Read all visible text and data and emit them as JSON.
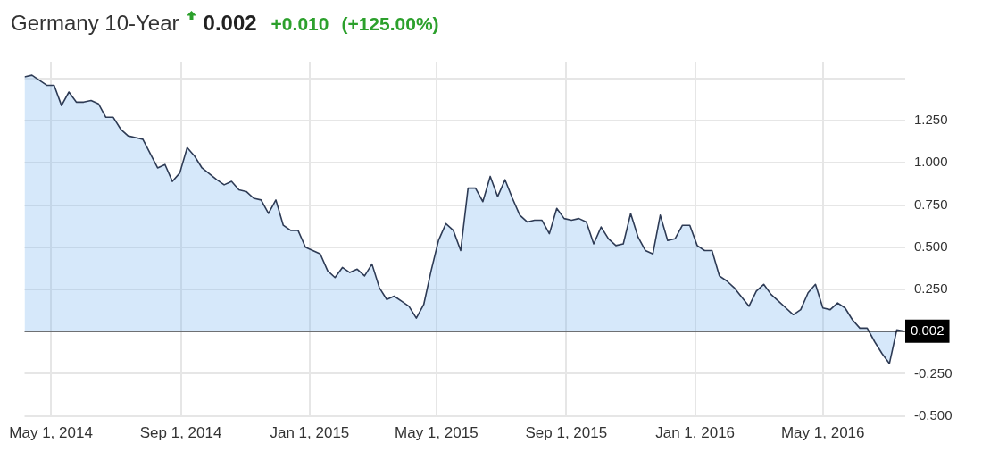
{
  "chart_data": {
    "type": "area",
    "title": "Germany 10-Year",
    "annotations": [
      "0.002",
      "+0.010",
      "(+125.00%)"
    ],
    "x": [
      "2014-04-06",
      "2014-04-13",
      "2014-04-27",
      "2014-05-04",
      "2014-05-11",
      "2014-05-18",
      "2014-05-25",
      "2014-06-01",
      "2014-06-08",
      "2014-06-15",
      "2014-06-22",
      "2014-06-29",
      "2014-07-06",
      "2014-07-13",
      "2014-07-20",
      "2014-07-27",
      "2014-08-10",
      "2014-08-17",
      "2014-08-24",
      "2014-08-31",
      "2014-09-07",
      "2014-09-14",
      "2014-09-21",
      "2014-10-05",
      "2014-10-12",
      "2014-10-19",
      "2014-10-26",
      "2014-11-02",
      "2014-11-09",
      "2014-11-16",
      "2014-11-23",
      "2014-11-30",
      "2014-12-07",
      "2014-12-14",
      "2014-12-21",
      "2014-12-28",
      "2015-01-04",
      "2015-01-11",
      "2015-01-18",
      "2015-01-25",
      "2015-02-01",
      "2015-02-08",
      "2015-02-15",
      "2015-02-22",
      "2015-03-01",
      "2015-03-08",
      "2015-03-15",
      "2015-03-22",
      "2015-03-29",
      "2015-04-05",
      "2015-04-12",
      "2015-04-19",
      "2015-04-26",
      "2015-05-03",
      "2015-05-10",
      "2015-05-17",
      "2015-05-24",
      "2015-05-31",
      "2015-06-07",
      "2015-06-14",
      "2015-06-21",
      "2015-06-28",
      "2015-07-05",
      "2015-07-12",
      "2015-07-19",
      "2015-07-26",
      "2015-08-02",
      "2015-08-09",
      "2015-08-16",
      "2015-08-23",
      "2015-08-30",
      "2015-09-06",
      "2015-09-13",
      "2015-09-20",
      "2015-09-27",
      "2015-10-04",
      "2015-10-11",
      "2015-10-18",
      "2015-10-25",
      "2015-11-01",
      "2015-11-08",
      "2015-11-15",
      "2015-11-22",
      "2015-11-29",
      "2015-12-06",
      "2015-12-13",
      "2015-12-20",
      "2015-12-27",
      "2016-01-03",
      "2016-01-10",
      "2016-01-17",
      "2016-01-24",
      "2016-01-31",
      "2016-02-07",
      "2016-02-21",
      "2016-02-28",
      "2016-03-06",
      "2016-03-13",
      "2016-03-20",
      "2016-03-27",
      "2016-04-03",
      "2016-04-10",
      "2016-04-17",
      "2016-04-24",
      "2016-05-01",
      "2016-05-08",
      "2016-05-15",
      "2016-05-22",
      "2016-05-29",
      "2016-06-05",
      "2016-06-12",
      "2016-06-19",
      "2016-06-26",
      "2016-07-03",
      "2016-07-10",
      "2016-07-17"
    ],
    "series": [
      {
        "color": "#2e3b55",
        "values": [
          1.51,
          1.52,
          1.46,
          1.46,
          1.34,
          1.42,
          1.36,
          1.36,
          1.37,
          1.35,
          1.27,
          1.27,
          1.2,
          1.16,
          1.15,
          1.14,
          0.97,
          0.99,
          0.89,
          0.94,
          1.09,
          1.04,
          0.97,
          0.9,
          0.87,
          0.89,
          0.84,
          0.83,
          0.79,
          0.78,
          0.7,
          0.78,
          0.63,
          0.6,
          0.6,
          0.5,
          0.48,
          0.46,
          0.36,
          0.32,
          0.38,
          0.35,
          0.37,
          0.33,
          0.4,
          0.26,
          0.19,
          0.21,
          0.18,
          0.15,
          0.08,
          0.16,
          0.36,
          0.54,
          0.64,
          0.6,
          0.48,
          0.85,
          0.85,
          0.77,
          0.92,
          0.8,
          0.9,
          0.79,
          0.69,
          0.65,
          0.66,
          0.66,
          0.58,
          0.73,
          0.67,
          0.66,
          0.67,
          0.65,
          0.52,
          0.62,
          0.55,
          0.51,
          0.52,
          0.7,
          0.56,
          0.48,
          0.46,
          0.69,
          0.54,
          0.55,
          0.63,
          0.63,
          0.51,
          0.48,
          0.48,
          0.33,
          0.3,
          0.26,
          0.15,
          0.24,
          0.28,
          0.22,
          0.18,
          0.14,
          0.1,
          0.13,
          0.23,
          0.28,
          0.14,
          0.13,
          0.17,
          0.14,
          0.07,
          0.02,
          0.02,
          -0.06,
          -0.13,
          -0.19,
          0.01,
          0.002
        ]
      }
    ],
    "xlim": [
      "2014-04-06",
      "2016-07-18"
    ],
    "xticks": [
      {
        "value": "2014-05-01",
        "label": "May 1, 2014"
      },
      {
        "value": "2014-09-01",
        "label": "Sep 1, 2014"
      },
      {
        "value": "2015-01-01",
        "label": "Jan 1, 2015"
      },
      {
        "value": "2015-05-01",
        "label": "May 1, 2015"
      },
      {
        "value": "2015-09-01",
        "label": "Sep 1, 2015"
      },
      {
        "value": "2016-01-01",
        "label": "Jan 1, 2016"
      },
      {
        "value": "2016-05-01",
        "label": "May 1, 2016"
      }
    ],
    "ylim": [
      -0.5,
      1.6
    ],
    "yticks": [
      {
        "value": -0.5,
        "label": "-0.500"
      },
      {
        "value": -0.25,
        "label": "-0.250"
      },
      {
        "value": 0,
        "label": null
      },
      {
        "value": 0.25,
        "label": "0.250"
      },
      {
        "value": 0.5,
        "label": "0.500"
      },
      {
        "value": 0.75,
        "label": "0.750"
      },
      {
        "value": 1,
        "label": "1.000"
      },
      {
        "value": 1.25,
        "label": "1.250"
      },
      {
        "value": 1.5,
        "label": null
      }
    ],
    "ref_lines": [
      {
        "axis": "y",
        "value": 0.002,
        "label": "0.002",
        "color": "#000000"
      }
    ],
    "grid": true,
    "legend": false,
    "marker": "none",
    "line_style": "solid"
  }
}
